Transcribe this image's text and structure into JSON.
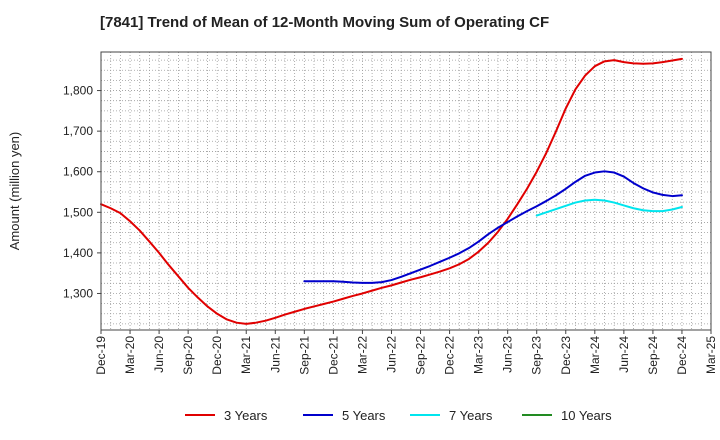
{
  "chart_data": {
    "type": "line",
    "title": "[7841]  Trend of Mean of 12-Month Moving Sum of Operating CF",
    "xlabel": "",
    "ylabel": "Amount (million yen)",
    "ylim": [
      1210,
      1895
    ],
    "yticks": [
      1300,
      1400,
      1500,
      1600,
      1700,
      1800
    ],
    "ytick_labels": [
      "1,300",
      "1,400",
      "1,500",
      "1,600",
      "1,700",
      "1,800"
    ],
    "xtick_labels": [
      "Dec-19",
      "Mar-20",
      "Jun-20",
      "Sep-20",
      "Dec-20",
      "Mar-21",
      "Jun-21",
      "Sep-21",
      "Dec-21",
      "Mar-22",
      "Jun-22",
      "Sep-22",
      "Dec-22",
      "Mar-23",
      "Jun-23",
      "Sep-23",
      "Dec-23",
      "Mar-24",
      "Jun-24",
      "Sep-24",
      "Dec-24",
      "Mar-25"
    ],
    "grid": true,
    "legend_position": "bottom",
    "series": [
      {
        "name": "3 Years",
        "color": "#e00000",
        "points": [
          [
            0,
            1520
          ],
          [
            1,
            1510
          ],
          [
            2,
            1498
          ],
          [
            3,
            1478
          ],
          [
            4,
            1455
          ],
          [
            5,
            1428
          ],
          [
            6,
            1400
          ],
          [
            7,
            1370
          ],
          [
            8,
            1342
          ],
          [
            9,
            1314
          ],
          [
            10,
            1290
          ],
          [
            11,
            1268
          ],
          [
            12,
            1250
          ],
          [
            13,
            1236
          ],
          [
            14,
            1228
          ],
          [
            15,
            1225
          ],
          [
            16,
            1228
          ],
          [
            17,
            1233
          ],
          [
            18,
            1240
          ],
          [
            19,
            1248
          ],
          [
            20,
            1255
          ],
          [
            21,
            1262
          ],
          [
            22,
            1268
          ],
          [
            23,
            1274
          ],
          [
            24,
            1280
          ],
          [
            25,
            1287
          ],
          [
            26,
            1294
          ],
          [
            27,
            1300
          ],
          [
            28,
            1307
          ],
          [
            29,
            1314
          ],
          [
            30,
            1320
          ],
          [
            31,
            1327
          ],
          [
            32,
            1334
          ],
          [
            33,
            1340
          ],
          [
            34,
            1347
          ],
          [
            35,
            1354
          ],
          [
            36,
            1362
          ],
          [
            37,
            1372
          ],
          [
            38,
            1385
          ],
          [
            39,
            1403
          ],
          [
            40,
            1425
          ],
          [
            41,
            1452
          ],
          [
            42,
            1484
          ],
          [
            43,
            1520
          ],
          [
            44,
            1558
          ],
          [
            45,
            1600
          ],
          [
            46,
            1647
          ],
          [
            47,
            1700
          ],
          [
            48,
            1756
          ],
          [
            49,
            1803
          ],
          [
            50,
            1837
          ],
          [
            51,
            1860
          ],
          [
            52,
            1872
          ],
          [
            53,
            1875
          ],
          [
            54,
            1870
          ],
          [
            55,
            1867
          ],
          [
            56,
            1866
          ],
          [
            57,
            1867
          ],
          [
            58,
            1870
          ],
          [
            59,
            1874
          ],
          [
            60,
            1878
          ]
        ]
      },
      {
        "name": "5 Years",
        "color": "#0000cc",
        "points": [
          [
            21,
            1330
          ],
          [
            22,
            1330
          ],
          [
            23,
            1330
          ],
          [
            24,
            1330
          ],
          [
            25,
            1329
          ],
          [
            26,
            1327
          ],
          [
            27,
            1326
          ],
          [
            28,
            1326
          ],
          [
            29,
            1328
          ],
          [
            30,
            1333
          ],
          [
            31,
            1341
          ],
          [
            32,
            1350
          ],
          [
            33,
            1359
          ],
          [
            34,
            1368
          ],
          [
            35,
            1378
          ],
          [
            36,
            1388
          ],
          [
            37,
            1399
          ],
          [
            38,
            1412
          ],
          [
            39,
            1428
          ],
          [
            40,
            1446
          ],
          [
            41,
            1462
          ],
          [
            42,
            1476
          ],
          [
            43,
            1490
          ],
          [
            44,
            1503
          ],
          [
            45,
            1515
          ],
          [
            46,
            1528
          ],
          [
            47,
            1542
          ],
          [
            48,
            1558
          ],
          [
            49,
            1575
          ],
          [
            50,
            1590
          ],
          [
            51,
            1598
          ],
          [
            52,
            1601
          ],
          [
            53,
            1598
          ],
          [
            54,
            1588
          ],
          [
            55,
            1572
          ],
          [
            56,
            1559
          ],
          [
            57,
            1549
          ],
          [
            58,
            1543
          ],
          [
            59,
            1540
          ],
          [
            60,
            1542
          ]
        ]
      },
      {
        "name": "7 Years",
        "color": "#00e5ee",
        "points": [
          [
            45,
            1492
          ],
          [
            46,
            1500
          ],
          [
            47,
            1508
          ],
          [
            48,
            1516
          ],
          [
            49,
            1524
          ],
          [
            50,
            1529
          ],
          [
            51,
            1531
          ],
          [
            52,
            1529
          ],
          [
            53,
            1524
          ],
          [
            54,
            1517
          ],
          [
            55,
            1510
          ],
          [
            56,
            1505
          ],
          [
            57,
            1503
          ],
          [
            58,
            1503
          ],
          [
            59,
            1507
          ],
          [
            60,
            1513
          ]
        ]
      },
      {
        "name": "10 Years",
        "color": "#228b22",
        "points": []
      }
    ]
  }
}
